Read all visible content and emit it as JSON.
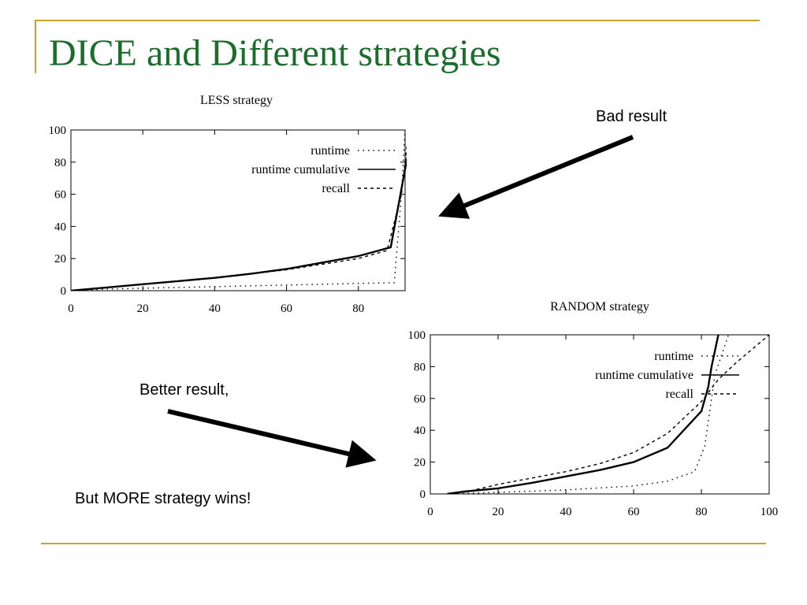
{
  "slide": {
    "title": "DICE and Different strategies",
    "accent_color": "#C9A227",
    "title_color": "#1E6B2E"
  },
  "annotations": {
    "bad": "Bad result",
    "better": "Better result,",
    "wins": "But MORE strategy wins!",
    "arrow_icon": "arrow-icon",
    "arrow_color": "#000000"
  },
  "chart_data": [
    {
      "type": "line",
      "title": "LESS strategy",
      "xlim": [
        0,
        93
      ],
      "ylim": [
        0,
        100
      ],
      "xticks": [
        0,
        20,
        40,
        60,
        80
      ],
      "yticks": [
        0,
        20,
        40,
        60,
        80,
        100
      ],
      "legend": "top-right",
      "grid": false,
      "series": [
        {
          "name": "runtime",
          "style": "dotted",
          "x": [
            0,
            10,
            20,
            40,
            60,
            80,
            90,
            92,
            93
          ],
          "y": [
            0,
            1,
            1.5,
            2.5,
            3.5,
            4.5,
            5,
            60,
            100
          ]
        },
        {
          "name": "runtime cumulative",
          "style": "solid",
          "x": [
            0,
            10,
            20,
            30,
            40,
            50,
            60,
            70,
            80,
            89,
            95
          ],
          "y": [
            0,
            2,
            4,
            6,
            8,
            10.5,
            13.5,
            17.5,
            21.5,
            27,
            100
          ]
        },
        {
          "name": "recall",
          "style": "dashed",
          "x": [
            0,
            20,
            40,
            60,
            80,
            88,
            92,
            94
          ],
          "y": [
            0,
            4,
            8,
            13,
            20,
            25,
            60,
            100
          ]
        }
      ]
    },
    {
      "type": "line",
      "title": "RANDOM strategy",
      "xlim": [
        0,
        100
      ],
      "ylim": [
        0,
        100
      ],
      "xticks": [
        0,
        20,
        40,
        60,
        80,
        100
      ],
      "yticks": [
        0,
        20,
        40,
        60,
        80,
        100
      ],
      "legend": "top-right",
      "grid": false,
      "series": [
        {
          "name": "runtime",
          "style": "dotted",
          "x": [
            5,
            20,
            40,
            60,
            70,
            78,
            81,
            84,
            88
          ],
          "y": [
            0,
            1,
            2.5,
            5,
            8,
            14,
            30,
            75,
            100
          ]
        },
        {
          "name": "runtime cumulative",
          "style": "solid",
          "x": [
            5,
            10,
            20,
            30,
            40,
            50,
            60,
            70,
            80,
            82,
            83,
            85
          ],
          "y": [
            0,
            1.5,
            3.5,
            7,
            11,
            15,
            20,
            29,
            52,
            67,
            80,
            100
          ]
        },
        {
          "name": "recall",
          "style": "dashed",
          "x": [
            10,
            20,
            30,
            40,
            50,
            60,
            70,
            80,
            85,
            90,
            100
          ],
          "y": [
            1,
            6,
            10,
            14,
            19,
            26,
            38,
            58,
            72,
            82,
            100
          ]
        }
      ]
    }
  ]
}
